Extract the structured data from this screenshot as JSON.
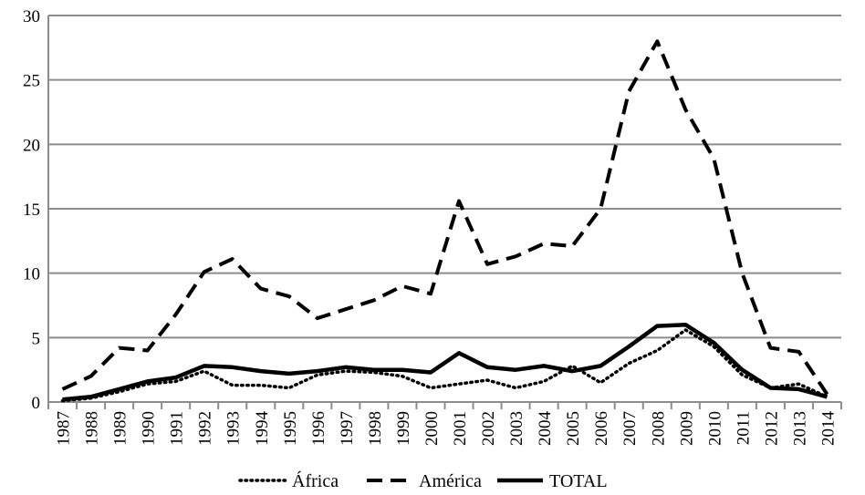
{
  "chart_data": {
    "type": "line",
    "title": "",
    "xlabel": "",
    "ylabel": "",
    "ylim": [
      0,
      30
    ],
    "yticks": [
      0,
      5,
      10,
      15,
      20,
      25,
      30
    ],
    "grid": "horizontal",
    "legend_position": "bottom",
    "categories": [
      "1987",
      "1988",
      "1989",
      "1990",
      "1991",
      "1992",
      "1993",
      "1994",
      "1995",
      "1996",
      "1997",
      "1998",
      "1999",
      "2000",
      "2001",
      "2002",
      "2003",
      "2004",
      "2005",
      "2006",
      "2007",
      "2008",
      "2009",
      "2010",
      "2011",
      "2012",
      "2013",
      "2014"
    ],
    "series": [
      {
        "name": "África",
        "style": "dotted",
        "color": "#000000",
        "values": [
          0.1,
          0.3,
          0.8,
          1.4,
          1.6,
          2.4,
          1.3,
          1.3,
          1.1,
          2.1,
          2.4,
          2.3,
          2.0,
          1.1,
          1.4,
          1.7,
          1.1,
          1.6,
          2.8,
          1.5,
          3.0,
          4.0,
          5.6,
          4.3,
          2.1,
          1.1,
          1.4,
          0.4
        ]
      },
      {
        "name": "América",
        "style": "dashed",
        "color": "#000000",
        "values": [
          1.0,
          2.0,
          4.2,
          4.0,
          6.8,
          10.1,
          11.1,
          8.8,
          8.2,
          6.5,
          7.2,
          7.9,
          9.0,
          8.4,
          15.6,
          10.7,
          11.3,
          12.3,
          12.1,
          15.0,
          24.1,
          28.0,
          22.7,
          18.9,
          10.0,
          4.2,
          3.9,
          0.6
        ]
      },
      {
        "name": "TOTAL",
        "style": "solid",
        "color": "#000000",
        "values": [
          0.2,
          0.4,
          1.0,
          1.6,
          1.9,
          2.8,
          2.7,
          2.4,
          2.2,
          2.4,
          2.7,
          2.5,
          2.5,
          2.3,
          3.8,
          2.7,
          2.5,
          2.8,
          2.4,
          2.8,
          4.3,
          5.9,
          6.0,
          4.6,
          2.5,
          1.1,
          1.0,
          0.4
        ]
      }
    ]
  }
}
